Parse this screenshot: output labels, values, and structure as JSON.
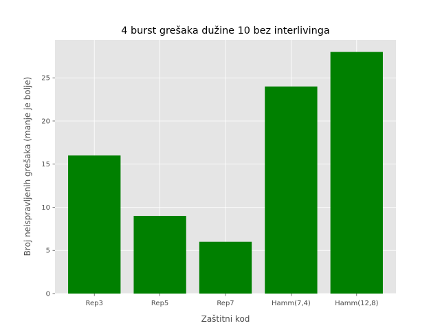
{
  "chart_data": {
    "type": "bar",
    "title": "4 burst grešaka dužine 10 bez interlivinga",
    "xlabel": "Zaštitni kod",
    "ylabel": "Broj neispravljenih grešaka (manje je bolje)",
    "categories": [
      "Rep3",
      "Rep5",
      "Rep7",
      "Hamm(7,4)",
      "Hamm(12,8)"
    ],
    "values": [
      16,
      9,
      6,
      24,
      28
    ],
    "ylim": [
      0,
      29.4
    ],
    "yticks": [
      0,
      5,
      10,
      15,
      20,
      25
    ],
    "ytick_labels": [
      "0",
      "5",
      "10",
      "15",
      "20",
      "25"
    ],
    "grid": true,
    "legend": "none",
    "colors": {
      "bar": "#008000",
      "plot_background": "#e5e5e5",
      "grid": "#ffffff",
      "text": "#4d4d4d"
    }
  }
}
